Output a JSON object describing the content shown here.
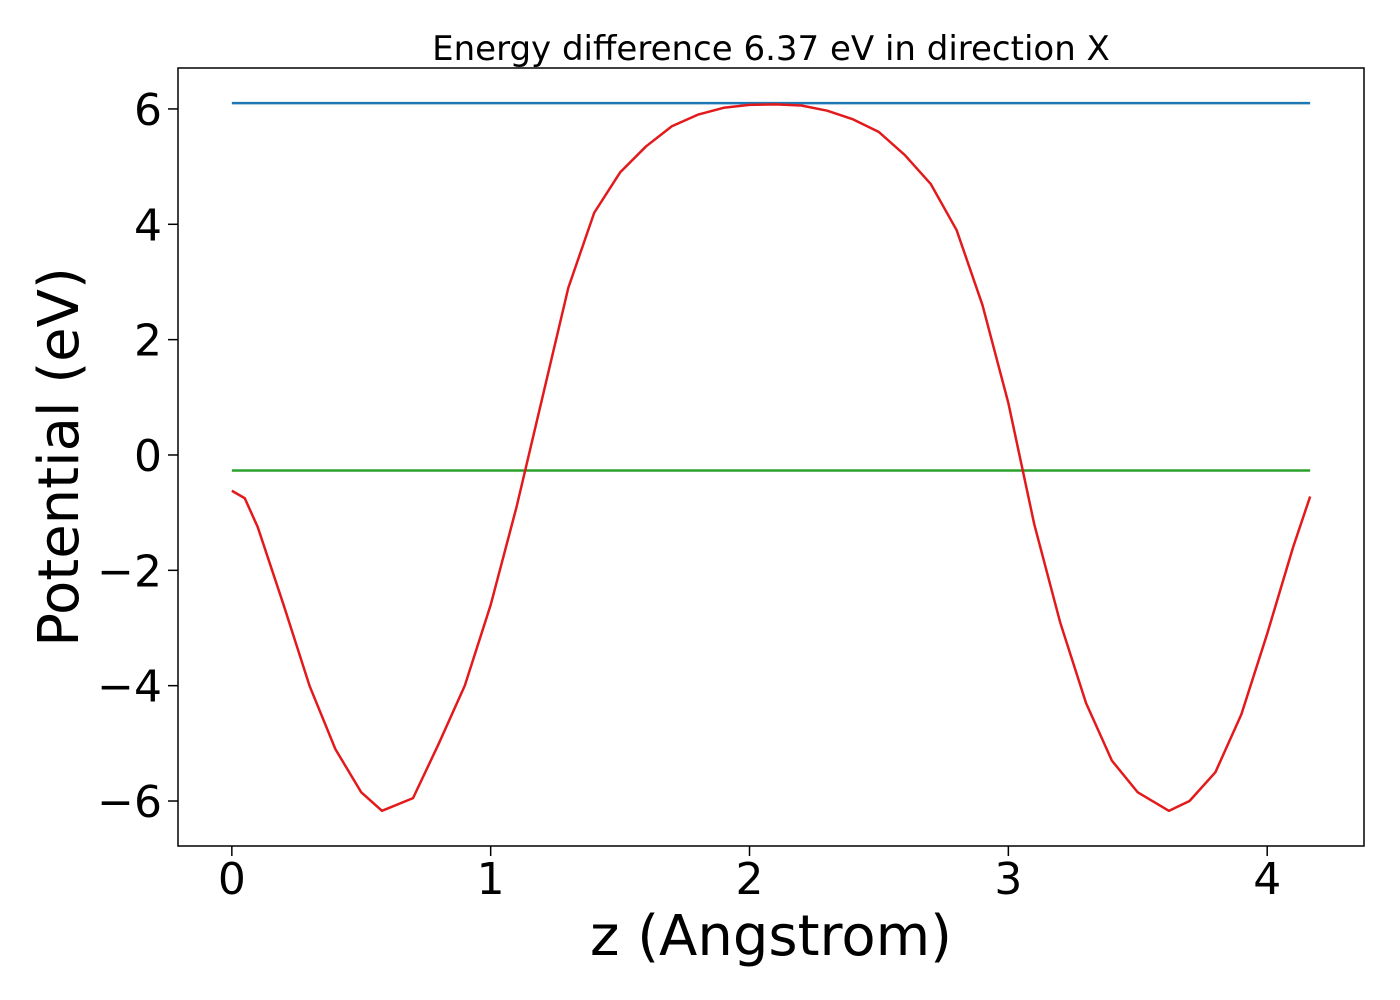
{
  "chart_data": {
    "type": "line",
    "title": "Energy difference 6.37 eV in direction X",
    "xlabel": "z (Angstrom)",
    "ylabel": "Potential (eV)",
    "xlim": [
      -0.208,
      4.374
    ],
    "ylim": [
      -6.78,
      6.71
    ],
    "xticks": [
      0,
      1,
      2,
      3,
      4
    ],
    "yticks": [
      {
        "value": -6,
        "label": "−6"
      },
      {
        "value": -4,
        "label": "−4"
      },
      {
        "value": -2,
        "label": "−2"
      },
      0,
      2,
      4,
      6
    ],
    "grid": false,
    "series": [
      {
        "color": "#1f77b4",
        "x": [
          0,
          4.166
        ],
        "values": [
          6.1,
          6.1
        ]
      },
      {
        "color": "#2ca02c",
        "x": [
          0,
          4.166
        ],
        "values": [
          -0.27,
          -0.27
        ]
      },
      {
        "color": "#e31a1c",
        "x": [
          0,
          0.05,
          0.1,
          0.2,
          0.3,
          0.4,
          0.5,
          0.58,
          0.7,
          0.8,
          0.9,
          1.0,
          1.1,
          1.2,
          1.3,
          1.4,
          1.5,
          1.6,
          1.7,
          1.8,
          1.9,
          2.0,
          2.1,
          2.2,
          2.3,
          2.4,
          2.5,
          2.6,
          2.7,
          2.8,
          2.9,
          3.0,
          3.1,
          3.2,
          3.3,
          3.4,
          3.5,
          3.62,
          3.7,
          3.8,
          3.9,
          4.0,
          4.1,
          4.166
        ],
        "values": [
          -0.62,
          -0.75,
          -1.25,
          -2.6,
          -4.0,
          -5.1,
          -5.85,
          -6.17,
          -5.95,
          -5.0,
          -4.0,
          -2.6,
          -0.9,
          1.0,
          2.9,
          4.2,
          4.9,
          5.35,
          5.7,
          5.9,
          6.02,
          6.07,
          6.08,
          6.06,
          5.97,
          5.82,
          5.6,
          5.2,
          4.7,
          3.9,
          2.6,
          0.9,
          -1.2,
          -2.9,
          -4.3,
          -5.3,
          -5.85,
          -6.17,
          -6.0,
          -5.5,
          -4.5,
          -3.1,
          -1.6,
          -0.72
        ]
      }
    ]
  }
}
